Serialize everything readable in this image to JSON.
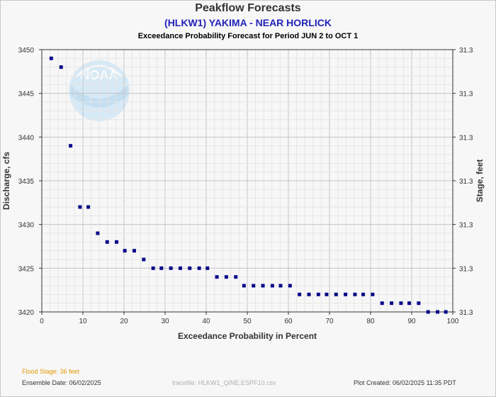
{
  "header": {
    "title": "Peakflow Forecasts",
    "station": "(HLKW1) YAKIMA - NEAR HORLICK",
    "subtitle": "Exceedance Probability Forecast for Period JUN 2 to OCT 1"
  },
  "footer": {
    "flood_stage": "Flood Stage: 36 feet",
    "ensemble_date": "Ensemble Date: 06/02/2025",
    "tracefile": "tracefile: HLKW1_QINE.ESPF10.csv",
    "plot_created": "Plot Created: 06/02/2025 11:35 PDT"
  },
  "colors": {
    "marker": "#0a0a8a",
    "flood_stage_text": "#e39a00",
    "station_text": "#2222bb",
    "logo": "#d6e9f6"
  },
  "logo": {
    "text": "NOAA",
    "icon": "noaa-logo-watermark"
  },
  "chart_data": {
    "type": "scatter",
    "xlabel": "Exceedance Probability in Percent",
    "ylabel": "Discharge, cfs",
    "y2label": "Stage, feet",
    "xlim": [
      0,
      100
    ],
    "ylim": [
      3420,
      3450
    ],
    "xticks": [
      0,
      10,
      20,
      30,
      40,
      50,
      60,
      70,
      80,
      90,
      100
    ],
    "yticks": [
      3420,
      3425,
      3430,
      3435,
      3440,
      3445,
      3450
    ],
    "y2ticks": [
      "31.3",
      "31.3",
      "31.3",
      "31.3",
      "31.3",
      "31.3",
      "31.3"
    ],
    "grid": true,
    "x": [
      2.3,
      4.7,
      7.0,
      9.3,
      11.3,
      13.6,
      15.9,
      18.2,
      20.2,
      22.5,
      24.8,
      27.1,
      29.1,
      31.4,
      33.7,
      36.0,
      38.3,
      40.3,
      42.6,
      44.9,
      47.2,
      49.2,
      51.5,
      53.8,
      56.1,
      58.1,
      60.4,
      62.7,
      65.0,
      67.3,
      69.3,
      71.6,
      73.9,
      76.2,
      78.2,
      80.5,
      82.8,
      85.1,
      87.4,
      89.4,
      91.7,
      94.0,
      96.3,
      98.3
    ],
    "y": [
      3449,
      3448,
      3439,
      3432,
      3432,
      3429,
      3428,
      3428,
      3427,
      3427,
      3426,
      3425,
      3425,
      3425,
      3425,
      3425,
      3425,
      3425,
      3424,
      3424,
      3424,
      3423,
      3423,
      3423,
      3423,
      3423,
      3423,
      3422,
      3422,
      3422,
      3422,
      3422,
      3422,
      3422,
      3422,
      3422,
      3421,
      3421,
      3421,
      3421,
      3421,
      3420,
      3420,
      3420
    ]
  }
}
